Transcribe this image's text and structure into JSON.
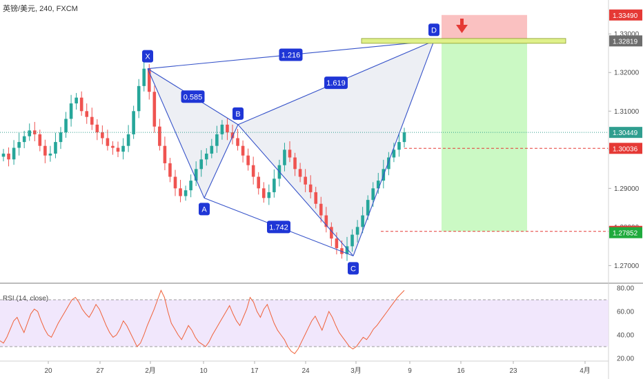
{
  "header": {
    "symbol": "英镑/美元",
    "interval": "240",
    "source": "FXCM",
    "title": "英镑/美元, 240, FXCM"
  },
  "price_axis": {
    "ticks": [
      "1.33000",
      "1.32000",
      "1.31000",
      "1.30000",
      "1.29000",
      "1.28000",
      "1.27000"
    ],
    "badges": [
      {
        "value": "1.33490",
        "color": "#e53935"
      },
      {
        "value": "1.32819",
        "color": "#6d6d6d"
      },
      {
        "value": "1.30449",
        "color": "#2f9e8f"
      },
      {
        "value": "1.30036",
        "color": "#e53935"
      },
      {
        "value": "1.27886",
        "color": "#e53935"
      },
      {
        "value": "1.27852",
        "color": "#1faa3c"
      }
    ]
  },
  "time_axis": {
    "labels": [
      "20",
      "27",
      "2月",
      "10",
      "17",
      "24",
      "3月",
      "9",
      "16",
      "23",
      "4月"
    ]
  },
  "pattern": {
    "points": [
      {
        "name": "X",
        "price": 1.321
      },
      {
        "name": "A",
        "price": 1.2875
      },
      {
        "name": "B",
        "price": 1.3065
      },
      {
        "name": "C",
        "price": 1.2725
      },
      {
        "name": "D",
        "price": 1.3282
      }
    ],
    "ratios": [
      "0.585",
      "1.216",
      "1.619",
      "1.742"
    ]
  },
  "trade_levels": {
    "stop": 1.3349,
    "entry": 1.32819,
    "target1": 1.30036,
    "target2": 1.27886
  },
  "rsi": {
    "label": "RSI (14, close)",
    "ticks": [
      "80.00",
      "60.00",
      "40.00",
      "20.00"
    ],
    "upper": 70,
    "lower": 30,
    "values": [
      35,
      33,
      38,
      45,
      52,
      55,
      48,
      42,
      50,
      58,
      62,
      60,
      52,
      45,
      40,
      38,
      44,
      50,
      55,
      60,
      65,
      70,
      72,
      68,
      62,
      58,
      55,
      60,
      66,
      62,
      55,
      48,
      42,
      38,
      40,
      45,
      52,
      48,
      42,
      36,
      30,
      33,
      40,
      48,
      55,
      62,
      70,
      78,
      72,
      60,
      50,
      45,
      40,
      36,
      42,
      48,
      44,
      38,
      34,
      32,
      30,
      34,
      40,
      45,
      50,
      55,
      60,
      65,
      58,
      52,
      48,
      55,
      62,
      72,
      68,
      60,
      55,
      62,
      66,
      58,
      50,
      44,
      40,
      36,
      30,
      26,
      24,
      28,
      34,
      40,
      46,
      52,
      56,
      50,
      44,
      52,
      60,
      55,
      48,
      42,
      38,
      34,
      30,
      28,
      30,
      34,
      38,
      36,
      40,
      45,
      48,
      52,
      56,
      60,
      64,
      68,
      72,
      75,
      78
    ]
  },
  "chart_data": {
    "type": "candlestick",
    "symbol": "英镑/美元",
    "timeframe": "240",
    "ylim": [
      1.2665,
      1.337
    ],
    "x_labels": [
      "20",
      "27",
      "2月",
      "10",
      "17",
      "24",
      "3月",
      "9",
      "16",
      "23",
      "4月"
    ],
    "close": [
      1.299,
      1.2975,
      1.3005,
      1.302,
      1.3035,
      1.305,
      1.304,
      1.301,
      1.2985,
      1.299,
      1.302,
      1.3045,
      1.308,
      1.312,
      1.3135,
      1.31,
      1.3085,
      1.3065,
      1.3045,
      1.303,
      1.301,
      1.3005,
      1.2995,
      1.301,
      1.304,
      1.31,
      1.3165,
      1.321,
      1.315,
      1.306,
      1.301,
      1.2965,
      1.293,
      1.29,
      1.288,
      1.2895,
      1.292,
      1.295,
      1.2975,
      1.299,
      1.301,
      1.304,
      1.3065,
      1.3045,
      1.303,
      1.301,
      1.2985,
      1.296,
      1.293,
      1.29,
      1.2875,
      1.289,
      1.2925,
      1.296,
      1.3,
      1.298,
      1.295,
      1.293,
      1.291,
      1.289,
      1.286,
      1.283,
      1.28,
      1.277,
      1.2745,
      1.273,
      1.275,
      1.278,
      1.28,
      1.283,
      1.287,
      1.29,
      1.292,
      1.295,
      1.298,
      1.3,
      1.302,
      1.3045
    ],
    "pattern_points": {
      "X": 1.321,
      "A": 1.2875,
      "B": 1.3065,
      "C": 1.2725,
      "D": 1.3282
    },
    "ratios": {
      "XB": 0.585,
      "XD": 1.216,
      "BD": 1.619,
      "AC": 1.742
    },
    "levels": {
      "stop": 1.3349,
      "entry": 1.32819,
      "current": 1.30449,
      "tp1": 1.30036,
      "tp2": 1.27886,
      "low": 1.27852
    },
    "rsi": {
      "period": 14,
      "upper": 70,
      "lower": 30,
      "ylim": [
        20,
        80
      ]
    },
    "grid": false
  }
}
